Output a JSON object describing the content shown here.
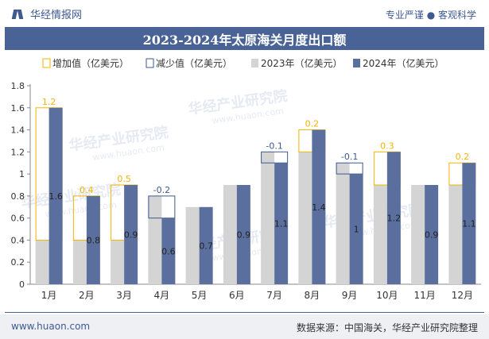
{
  "header": {
    "brand": "华经情报网",
    "tagline": "专业严谨 ● 客观科学"
  },
  "title": "2023-2024年太原海关月度出口额",
  "footer": {
    "website": "www.huaon.com",
    "source": "数据来源：中国海关，华经产业研究院整理"
  },
  "watermark": "华经产业研究院",
  "watermark_url": "www.huaon.com",
  "colors": {
    "increase": "#f5b400",
    "decrease": "#3e5a8e",
    "y2023": "#d4d4d4",
    "y2024": "#5a6f9e",
    "title_bar": "#4a6397"
  },
  "chart_data": {
    "type": "bar",
    "title": "2023-2024年太原海关月度出口额",
    "categories": [
      "1月",
      "2月",
      "3月",
      "4月",
      "5月",
      "6月",
      "7月",
      "8月",
      "9月",
      "10月",
      "11月",
      "12月"
    ],
    "series": [
      {
        "name": "增加值（亿美元）",
        "values": [
          1.2,
          0.4,
          0.5,
          null,
          null,
          null,
          null,
          0.2,
          null,
          0.3,
          null,
          0.2
        ]
      },
      {
        "name": "减少值（亿美元）",
        "values": [
          null,
          null,
          null,
          -0.2,
          null,
          null,
          -0.1,
          null,
          -0.1,
          null,
          null,
          null
        ]
      },
      {
        "name": "2023年（亿美元）",
        "values": [
          0.4,
          0.4,
          0.4,
          0.8,
          0.7,
          0.9,
          1.2,
          1.2,
          1.1,
          0.9,
          0.9,
          0.9
        ]
      },
      {
        "name": "2024年（亿美元）",
        "values": [
          1.6,
          0.8,
          0.9,
          0.6,
          0.7,
          0.9,
          1.1,
          1.4,
          1.0,
          1.2,
          0.9,
          1.1
        ]
      }
    ],
    "data_labels_2024": [
      "1.6",
      "0.8",
      "0.9",
      "0.6",
      "0.7",
      "0.9",
      "1.1",
      "1.4",
      "1",
      "1.2",
      "0.9",
      "1.1"
    ],
    "change_labels": [
      "1.2",
      "0.4",
      "0.5",
      "-0.2",
      "",
      "",
      "-0.1",
      "0.2",
      "-0.1",
      "0.3",
      "",
      "0.2"
    ],
    "yticks": [
      "0",
      "0.2",
      "0.4",
      "0.6",
      "0.8",
      "1",
      "1.2",
      "1.4",
      "1.6",
      "1.8"
    ],
    "ylim": [
      0,
      1.8
    ],
    "legend_position": "top",
    "grid": false
  }
}
